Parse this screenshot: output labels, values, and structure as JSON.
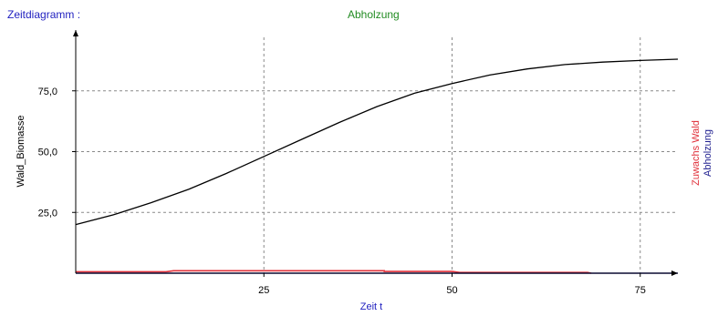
{
  "header": {
    "left_label": "Zeitdiagramm :",
    "center_label": "Abholzung",
    "left_color": "#1f1fbf",
    "center_color": "#228b22"
  },
  "chart_data": {
    "type": "line",
    "title": "Abholzung",
    "xlabel": "Zeit t",
    "ylabel": "Wald_Biomasse",
    "right_labels": [
      {
        "text": "Zuwachs Wald",
        "color": "#e0303a"
      },
      {
        "text": "Abholzung",
        "color": "#1f1f8f"
      }
    ],
    "xlim": [
      0,
      80
    ],
    "ylim": [
      0,
      100
    ],
    "x_ticks": [
      25,
      50,
      75
    ],
    "x_tick_labels": [
      "25",
      "50",
      "75"
    ],
    "y_ticks": [
      25,
      50,
      75
    ],
    "y_tick_labels": [
      "25,0",
      "50,0",
      "75,0"
    ],
    "grid": true,
    "grid_style": "dashed",
    "series": [
      {
        "key": "biomass",
        "color": "#000000",
        "x": [
          0,
          5,
          10,
          15,
          20,
          25,
          30,
          35,
          40,
          45,
          50,
          55,
          60,
          65,
          70,
          75,
          80
        ],
        "y": [
          20,
          24,
          29,
          34.5,
          41,
          48,
          55,
          62,
          68.5,
          74,
          78,
          81.5,
          84,
          85.8,
          86.8,
          87.5,
          88
        ]
      },
      {
        "key": "growth",
        "color": "#e0303a",
        "x": [
          0,
          12,
          13,
          41,
          41,
          50,
          51,
          68,
          68.5
        ],
        "y": [
          0.6,
          0.6,
          1.0,
          1.0,
          0.7,
          0.7,
          0.3,
          0.3,
          0
        ]
      },
      {
        "key": "logging",
        "color": "#1f1f8f",
        "x": [
          0,
          80
        ],
        "y": [
          0,
          0
        ]
      }
    ]
  }
}
